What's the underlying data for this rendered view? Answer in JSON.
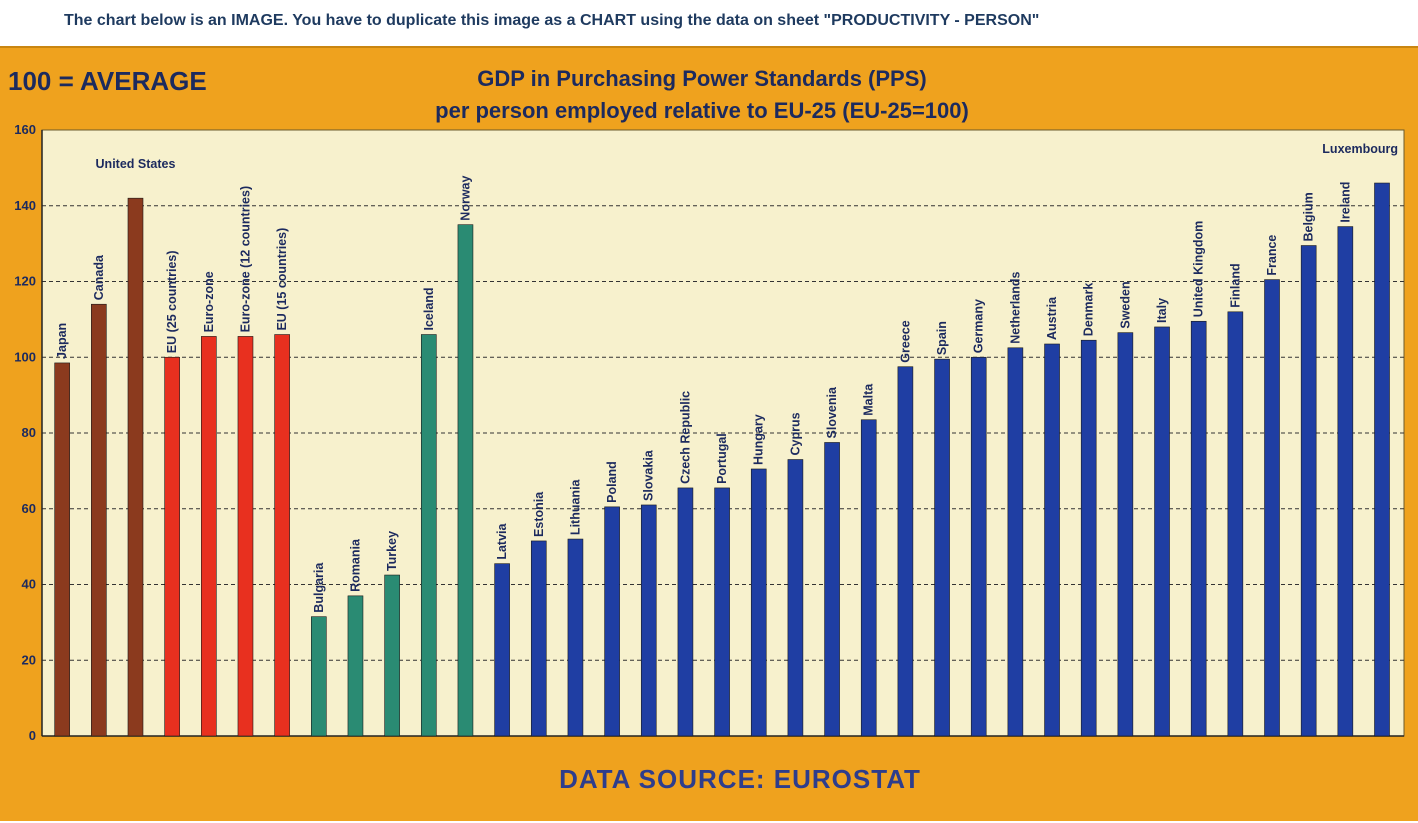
{
  "instruction": "The chart below is an IMAGE. You have to duplicate this image as a CHART using the data on sheet \"PRODUCTIVITY - PERSON\"",
  "colors": {
    "panel_background": "#efa21e",
    "plot_background": "#f7f1cd",
    "non_eu": "#8b3a1e",
    "eu_aggregate": "#e8301f",
    "candidate_efta": "#2a8b73",
    "member_state": "#1f3ea3",
    "text": "#1c2a5e"
  },
  "chart_data": {
    "type": "bar",
    "corner_label": "100 = AVERAGE",
    "title": [
      "GDP in Purchasing Power Standards (PPS)",
      "per person employed relative to EU-25 (EU-25=100)"
    ],
    "source": "DATA SOURCE: EUROSTAT",
    "ylim": [
      0,
      160
    ],
    "yticks": [
      0,
      20,
      40,
      60,
      80,
      100,
      120,
      140,
      160
    ],
    "grid": "horizontal-dashed",
    "categories": [
      "Japan",
      "Canada",
      "United States",
      "EU (25 countries)",
      "Euro-zone",
      "Euro-zone (12 countries)",
      "EU (15 countries)",
      "Bulgaria",
      "Romania",
      "Turkey",
      "Iceland",
      "Norway",
      "Latvia",
      "Estonia",
      "Lithuania",
      "Poland",
      "Slovakia",
      "Czech Republic",
      "Portugal",
      "Hungary",
      "Cyprus",
      "Slovenia",
      "Malta",
      "Greece",
      "Spain",
      "Germany",
      "Netherlands",
      "Austria",
      "Denmark",
      "Sweden",
      "Italy",
      "United Kingdom",
      "Finland",
      "France",
      "Belgium",
      "Ireland",
      "Luxembourg"
    ],
    "values": [
      98.5,
      114,
      142,
      100,
      105.5,
      105.5,
      106,
      31.5,
      37,
      42.5,
      106,
      135,
      45.5,
      51.5,
      52,
      60.5,
      61,
      65.5,
      65.5,
      70.5,
      73,
      77.5,
      83.5,
      97.5,
      99.5,
      100,
      102.5,
      103.5,
      104.5,
      106.5,
      108,
      109.5,
      112,
      120.5,
      129.5,
      134.5,
      146
    ],
    "groups": [
      "non_eu",
      "non_eu",
      "non_eu",
      "eu_aggregate",
      "eu_aggregate",
      "eu_aggregate",
      "eu_aggregate",
      "candidate_efta",
      "candidate_efta",
      "candidate_efta",
      "candidate_efta",
      "candidate_efta",
      "member_state",
      "member_state",
      "member_state",
      "member_state",
      "member_state",
      "member_state",
      "member_state",
      "member_state",
      "member_state",
      "member_state",
      "member_state",
      "member_state",
      "member_state",
      "member_state",
      "member_state",
      "member_state",
      "member_state",
      "member_state",
      "member_state",
      "member_state",
      "member_state",
      "member_state",
      "member_state",
      "member_state",
      "member_state"
    ],
    "horizontal_label_categories": [
      "United States",
      "Luxembourg"
    ]
  }
}
